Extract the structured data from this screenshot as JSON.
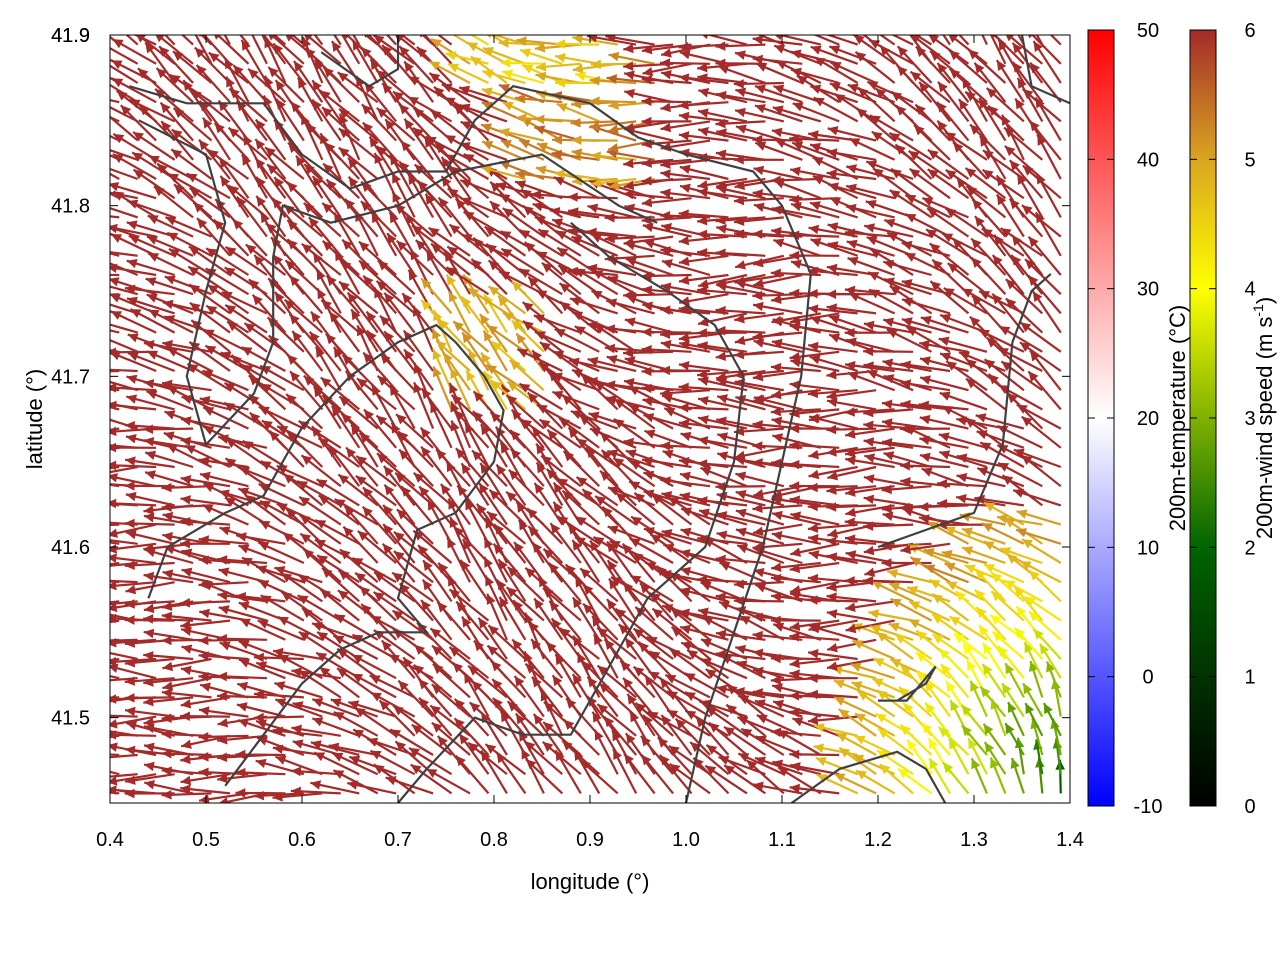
{
  "chart_data": {
    "type": "vector-field",
    "xlabel": "longitude (°)",
    "ylabel": "latitude (°)",
    "xlim": [
      0.4,
      1.4
    ],
    "ylim": [
      41.45,
      41.9
    ],
    "x_ticks": [
      "0.4",
      "0.5",
      "0.6",
      "0.7",
      "0.8",
      "0.9",
      "1.0",
      "1.1",
      "1.2",
      "1.3",
      "1.4"
    ],
    "y_ticks": [
      "41.5",
      "41.6",
      "41.7",
      "41.8",
      "41.9"
    ],
    "grid": false,
    "series": [
      {
        "type": "quiver",
        "color_scale": "200m-wind speed",
        "dominant_speed": 6,
        "low_speed_region": {
          "lon_range": [
            1.2,
            1.4
          ],
          "lat_range": [
            41.45,
            41.6
          ],
          "speed_range": [
            2,
            5
          ]
        }
      },
      {
        "type": "contour",
        "color": "#404040"
      }
    ],
    "colorbars": [
      {
        "label": "200m-temperature (°C)",
        "range": [
          -10,
          50
        ],
        "ticks": [
          "-10",
          "0",
          "10",
          "20",
          "30",
          "40",
          "50"
        ],
        "colors": [
          "#0000ff",
          "#ffffff",
          "#ff0000"
        ]
      },
      {
        "label_main": "200m-wind speed (m s",
        "label_sup": "-1",
        "label_end": ")",
        "range": [
          0,
          6
        ],
        "ticks": [
          "0",
          "1",
          "2",
          "3",
          "4",
          "5",
          "6"
        ],
        "colors": [
          "#000000",
          "#006400",
          "#ffff00",
          "#daa520",
          "#a52a2a"
        ]
      }
    ]
  }
}
